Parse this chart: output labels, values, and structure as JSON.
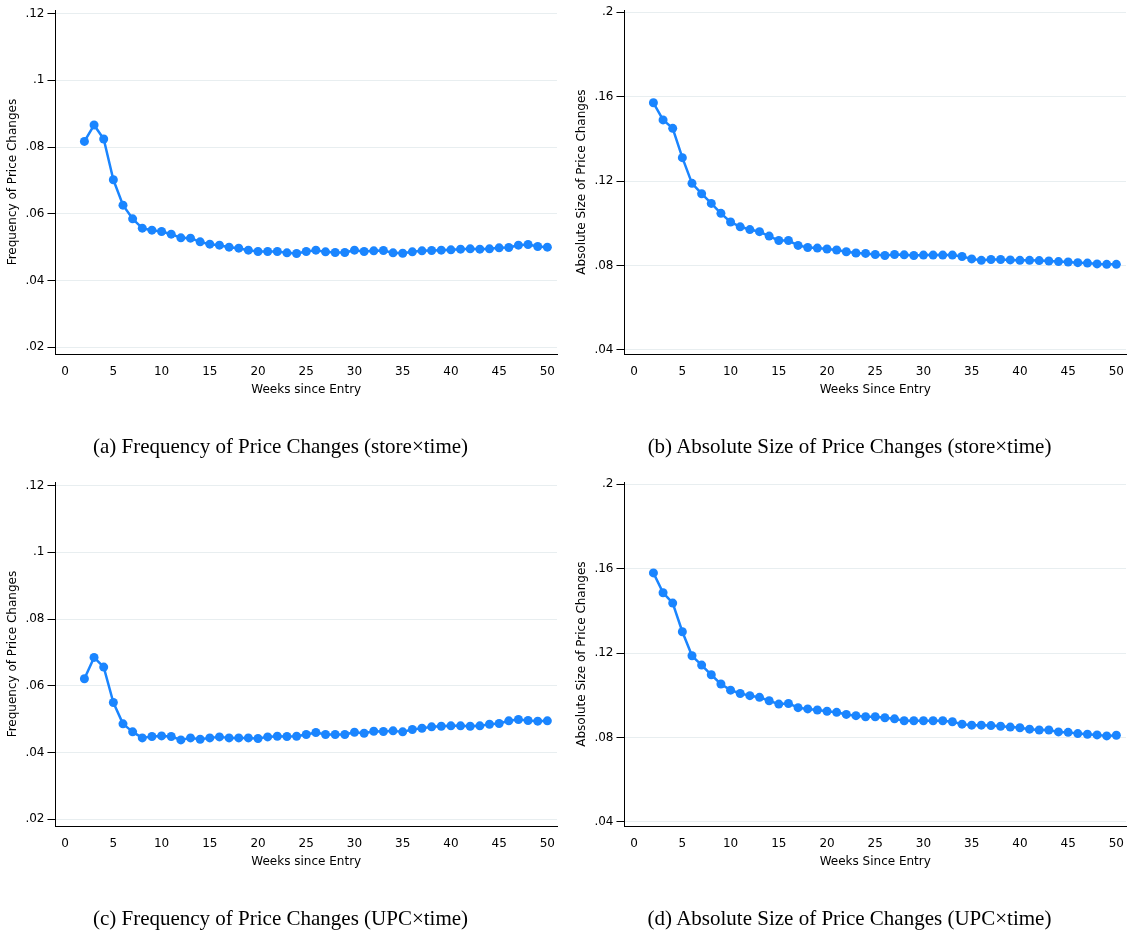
{
  "chart_data": [
    {
      "type": "line",
      "title": "(a) Frequency of Price Changes (store×time)",
      "xlabel": "Weeks since Entry",
      "ylabel": "Frequency of Price Changes",
      "xlim": [
        -1,
        51
      ],
      "xticks": [
        0,
        5,
        10,
        15,
        20,
        25,
        30,
        35,
        40,
        45,
        50
      ],
      "ylim": [
        0.018,
        0.121
      ],
      "yticks": [
        {
          "value": 0.02,
          "label": ".02"
        },
        {
          "value": 0.04,
          "label": ".04"
        },
        {
          "value": 0.06,
          "label": ".06"
        },
        {
          "value": 0.08,
          "label": ".08"
        },
        {
          "value": 0.1,
          "label": ".1"
        },
        {
          "value": 0.12,
          "label": ".12"
        }
      ],
      "grid": "y",
      "marker": "circle",
      "legend": false,
      "x": [
        2,
        3,
        4,
        5,
        6,
        7,
        8,
        9,
        10,
        11,
        12,
        13,
        14,
        15,
        16,
        17,
        18,
        19,
        20,
        21,
        22,
        23,
        24,
        25,
        26,
        27,
        28,
        29,
        30,
        31,
        32,
        33,
        34,
        35,
        36,
        37,
        38,
        39,
        40,
        41,
        42,
        43,
        44,
        45,
        46,
        47,
        48,
        49,
        50
      ],
      "series": [
        {
          "color": "#1a85ff",
          "values": [
            0.0817,
            0.0866,
            0.0824,
            0.0702,
            0.0626,
            0.0585,
            0.0557,
            0.0551,
            0.0547,
            0.0539,
            0.0528,
            0.0527,
            0.0516,
            0.0509,
            0.0506,
            0.05,
            0.0497,
            0.0491,
            0.0487,
            0.0487,
            0.0487,
            0.0483,
            0.0481,
            0.0487,
            0.0491,
            0.0486,
            0.0484,
            0.0484,
            0.0491,
            0.0487,
            0.0489,
            0.049,
            0.0483,
            0.0482,
            0.0486,
            0.0489,
            0.049,
            0.0491,
            0.0492,
            0.0494,
            0.0495,
            0.0494,
            0.0495,
            0.0498,
            0.0499,
            0.0506,
            0.0508,
            0.0502,
            0.05
          ]
        }
      ]
    },
    {
      "type": "line",
      "title": "(b) Absolute Size of Price Changes (store×time)",
      "xlabel": "Weeks Since Entry",
      "ylabel": "Absolute Size of Price Changes",
      "xlim": [
        -1,
        51
      ],
      "xticks": [
        0,
        5,
        10,
        15,
        20,
        25,
        30,
        35,
        40,
        45,
        50
      ],
      "ylim": [
        0.038,
        0.201
      ],
      "yticks": [
        {
          "value": 0.04,
          "label": ".04"
        },
        {
          "value": 0.08,
          "label": ".08"
        },
        {
          "value": 0.12,
          "label": ".12"
        },
        {
          "value": 0.16,
          "label": ".16"
        },
        {
          "value": 0.2,
          "label": ".2"
        }
      ],
      "grid": "y",
      "marker": "circle",
      "legend": false,
      "x": [
        2,
        3,
        4,
        5,
        6,
        7,
        8,
        9,
        10,
        11,
        12,
        13,
        14,
        15,
        16,
        17,
        18,
        19,
        20,
        21,
        22,
        23,
        24,
        25,
        26,
        27,
        28,
        29,
        30,
        31,
        32,
        33,
        34,
        35,
        36,
        37,
        38,
        39,
        40,
        41,
        42,
        43,
        44,
        45,
        46,
        47,
        48,
        49,
        50
      ],
      "series": [
        {
          "color": "#1a85ff",
          "values": [
            0.1571,
            0.149,
            0.145,
            0.1311,
            0.1189,
            0.114,
            0.1094,
            0.1047,
            0.1006,
            0.0983,
            0.097,
            0.096,
            0.0939,
            0.0918,
            0.0918,
            0.0895,
            0.0885,
            0.0882,
            0.0878,
            0.0873,
            0.0865,
            0.0859,
            0.0857,
            0.0852,
            0.0847,
            0.0852,
            0.085,
            0.0847,
            0.0849,
            0.0849,
            0.0849,
            0.0849,
            0.0842,
            0.0831,
            0.0824,
            0.0828,
            0.0828,
            0.0826,
            0.0824,
            0.0824,
            0.0823,
            0.0821,
            0.0818,
            0.0816,
            0.0813,
            0.0811,
            0.0807,
            0.0805,
            0.0805
          ]
        }
      ]
    },
    {
      "type": "line",
      "title": "(c) Frequency of Price Changes (UPC×time)",
      "xlabel": "Weeks since Entry",
      "ylabel": "Frequency of Price Changes",
      "xlim": [
        -1,
        51
      ],
      "xticks": [
        0,
        5,
        10,
        15,
        20,
        25,
        30,
        35,
        40,
        45,
        50
      ],
      "ylim": [
        0.018,
        0.121
      ],
      "yticks": [
        {
          "value": 0.02,
          "label": ".02"
        },
        {
          "value": 0.04,
          "label": ".04"
        },
        {
          "value": 0.06,
          "label": ".06"
        },
        {
          "value": 0.08,
          "label": ".08"
        },
        {
          "value": 0.1,
          "label": ".1"
        },
        {
          "value": 0.12,
          "label": ".12"
        }
      ],
      "grid": "y",
      "marker": "circle",
      "legend": false,
      "x": [
        2,
        3,
        4,
        5,
        6,
        7,
        8,
        9,
        10,
        11,
        12,
        13,
        14,
        15,
        16,
        17,
        18,
        19,
        20,
        21,
        22,
        23,
        24,
        25,
        26,
        27,
        28,
        29,
        30,
        31,
        32,
        33,
        34,
        35,
        36,
        37,
        38,
        39,
        40,
        41,
        42,
        43,
        44,
        45,
        46,
        47,
        48,
        49,
        50
      ],
      "series": [
        {
          "color": "#1a85ff",
          "values": [
            0.0621,
            0.0685,
            0.0656,
            0.055,
            0.0486,
            0.0462,
            0.0444,
            0.0448,
            0.045,
            0.0448,
            0.0438,
            0.0444,
            0.044,
            0.0444,
            0.0447,
            0.0444,
            0.0444,
            0.0444,
            0.0442,
            0.0447,
            0.0449,
            0.0448,
            0.0449,
            0.0454,
            0.046,
            0.0454,
            0.0454,
            0.0454,
            0.0461,
            0.0458,
            0.0464,
            0.0463,
            0.0465,
            0.0462,
            0.0469,
            0.0473,
            0.0477,
            0.0479,
            0.048,
            0.048,
            0.0479,
            0.048,
            0.0485,
            0.0487,
            0.0495,
            0.0499,
            0.0496,
            0.0494,
            0.0495
          ]
        }
      ]
    },
    {
      "type": "line",
      "title": "(d) Absolute Size of Price Changes (UPC×time)",
      "xlabel": "Weeks Since Entry",
      "ylabel": "Absolute Size of Price Changes",
      "xlim": [
        -1,
        51
      ],
      "xticks": [
        0,
        5,
        10,
        15,
        20,
        25,
        30,
        35,
        40,
        45,
        50
      ],
      "ylim": [
        0.038,
        0.201
      ],
      "yticks": [
        {
          "value": 0.04,
          "label": ".04"
        },
        {
          "value": 0.08,
          "label": ".08"
        },
        {
          "value": 0.12,
          "label": ".12"
        },
        {
          "value": 0.16,
          "label": ".16"
        },
        {
          "value": 0.2,
          "label": ".2"
        }
      ],
      "grid": "y",
      "marker": "circle",
      "legend": false,
      "x": [
        2,
        3,
        4,
        5,
        6,
        7,
        8,
        9,
        10,
        11,
        12,
        13,
        14,
        15,
        16,
        17,
        18,
        19,
        20,
        21,
        22,
        23,
        24,
        25,
        26,
        27,
        28,
        29,
        30,
        31,
        32,
        33,
        34,
        35,
        36,
        37,
        38,
        39,
        40,
        41,
        42,
        43,
        44,
        45,
        46,
        47,
        48,
        49,
        50
      ],
      "series": [
        {
          "color": "#1a85ff",
          "values": [
            0.158,
            0.1486,
            0.1437,
            0.1301,
            0.1187,
            0.1143,
            0.1097,
            0.1053,
            0.1024,
            0.1008,
            0.0998,
            0.099,
            0.0974,
            0.0958,
            0.0961,
            0.0941,
            0.0935,
            0.093,
            0.0924,
            0.0919,
            0.0909,
            0.0903,
            0.0898,
            0.0898,
            0.0893,
            0.0888,
            0.0879,
            0.0879,
            0.0879,
            0.0879,
            0.0879,
            0.0874,
            0.0863,
            0.0858,
            0.0858,
            0.0856,
            0.0853,
            0.0849,
            0.0846,
            0.0839,
            0.0835,
            0.0835,
            0.0826,
            0.0824,
            0.0818,
            0.0815,
            0.0812,
            0.0807,
            0.081
          ]
        }
      ]
    }
  ]
}
